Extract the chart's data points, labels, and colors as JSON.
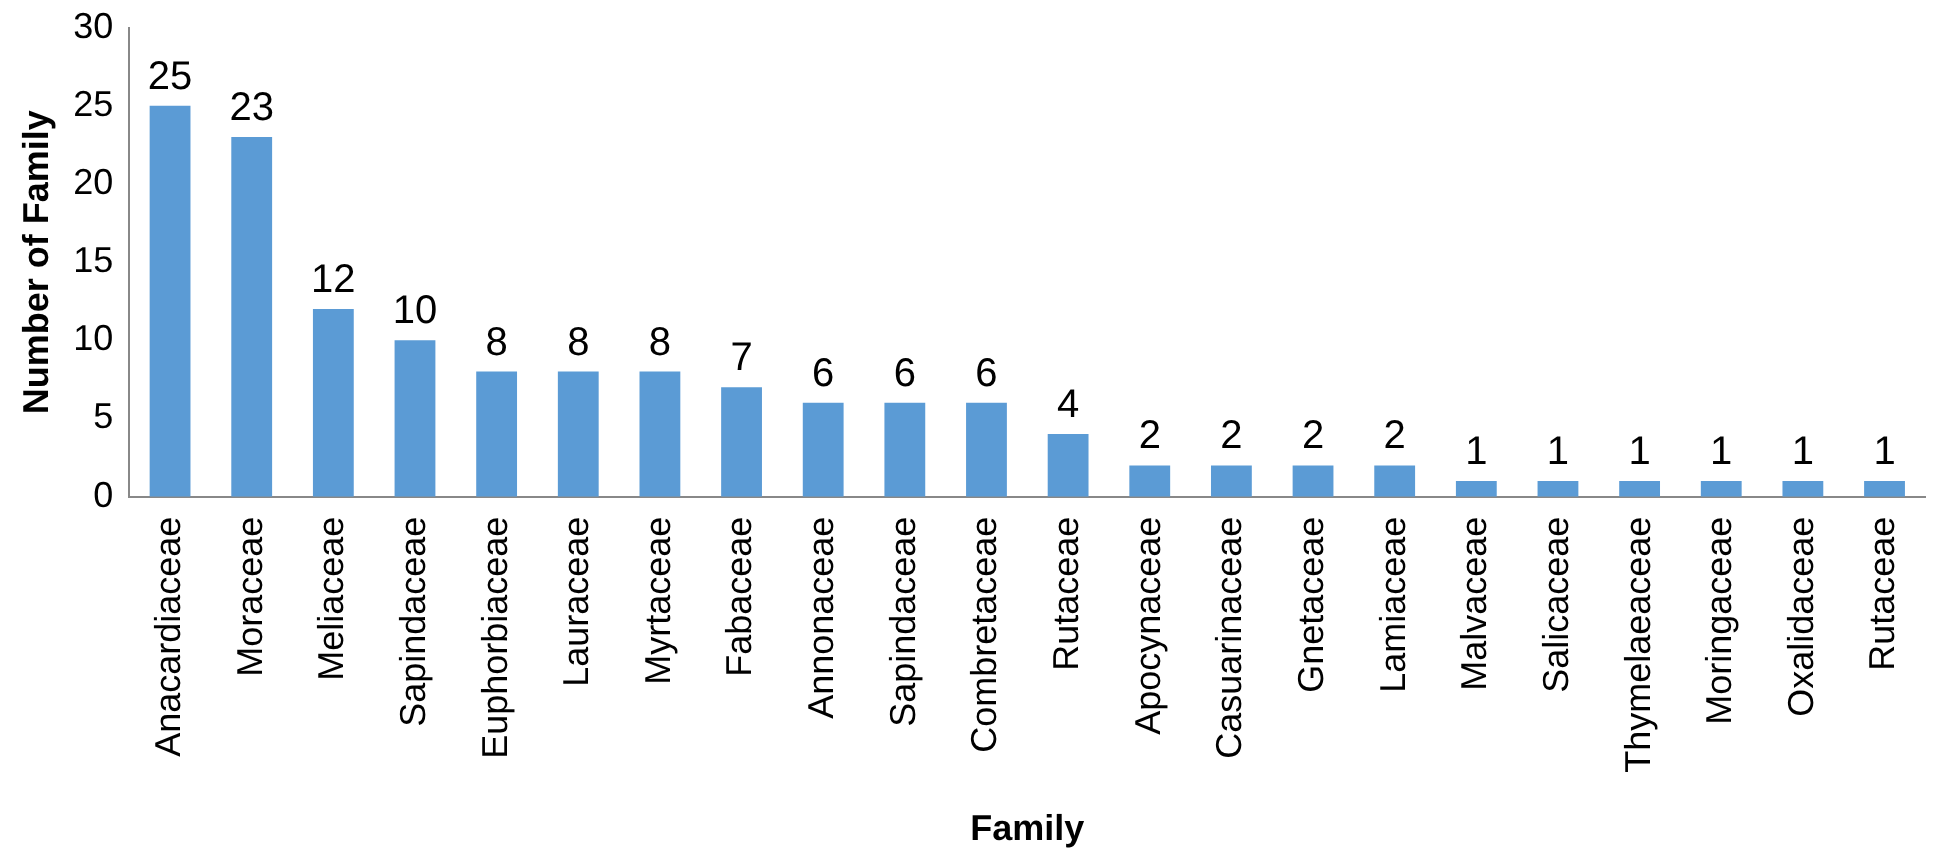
{
  "chart_data": {
    "type": "bar",
    "xlabel": "Family",
    "ylabel": "Number of Family",
    "categories": [
      "Anacardiaceae",
      "Moraceae",
      "Meliaceae",
      "Sapindaceae",
      "Euphorbiaceae",
      "Lauraceae",
      "Myrtaceae",
      "Fabaceae",
      "Annonaceae",
      "Sapindaceae",
      "Combretaceae",
      "Rutaceae",
      "Apocynaceae",
      "Casuarinaceae",
      "Gnetaceae",
      "Lamiaceae",
      "Malvaceae",
      "Salicaceae",
      "Thymelaeaceae",
      "Moringaceae",
      "Oxalidaceae",
      "Rutaceae"
    ],
    "values": [
      25,
      23,
      12,
      10,
      8,
      8,
      8,
      7,
      6,
      6,
      6,
      4,
      2,
      2,
      2,
      2,
      1,
      1,
      1,
      1,
      1,
      1
    ],
    "color": "#5b9bd5",
    "ylim": [
      0,
      30
    ],
    "yticks": [
      0,
      5,
      10,
      15,
      20,
      25,
      30
    ],
    "data_labels": true,
    "grid": false,
    "legend": false
  }
}
